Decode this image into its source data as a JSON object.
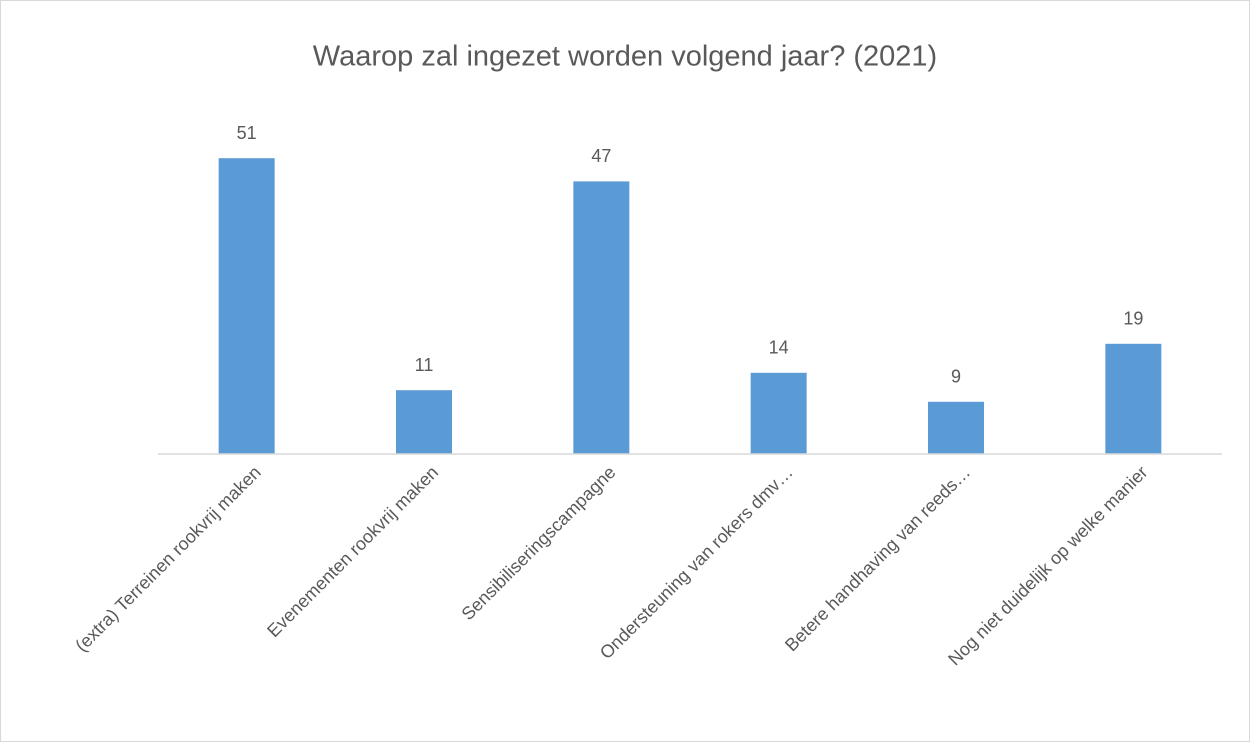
{
  "chart_data": {
    "type": "bar",
    "title": "Waarop zal ingezet worden volgend jaar? (2021)",
    "categories": [
      "(extra) Terreinen rookvrij maken",
      "Evenementen rookvrij maken",
      "Sensibiliseringscampagne",
      "Ondersteuning van rokers dmv…",
      "Betere handhaving van reeds…",
      "Nog niet duidelijk op welke manier"
    ],
    "values": [
      51,
      11,
      47,
      14,
      9,
      19
    ],
    "color": "#5b9bd5",
    "ylim": [
      0,
      60
    ]
  }
}
